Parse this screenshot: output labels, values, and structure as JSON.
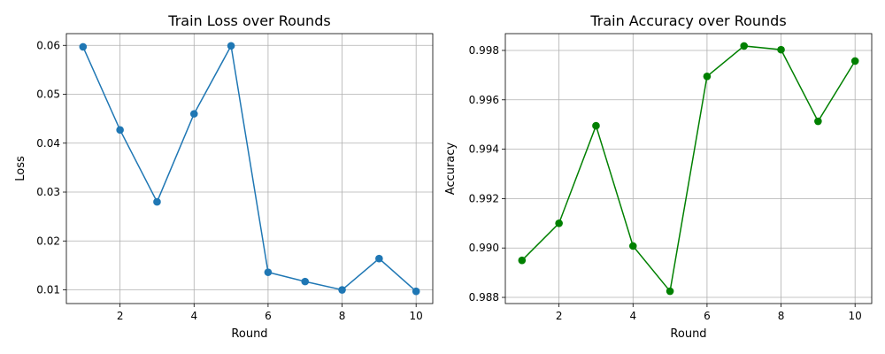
{
  "chart_data": [
    {
      "type": "line",
      "title": "Train Loss over Rounds",
      "xlabel": "Round",
      "ylabel": "Loss",
      "x": [
        1,
        2,
        3,
        4,
        5,
        6,
        7,
        8,
        9,
        10
      ],
      "series": [
        {
          "values": [
            0.0597,
            0.0427,
            0.028,
            0.046,
            0.0599,
            0.0136,
            0.0117,
            0.01,
            0.0164,
            0.0097
          ],
          "color": "#1f77b4",
          "marker": "circle"
        }
      ],
      "xlim": [
        0.55,
        10.45
      ],
      "ylim": [
        0.0072,
        0.0624
      ],
      "xticks": [
        2,
        4,
        6,
        8,
        10
      ],
      "xtick_labels": [
        "2",
        "4",
        "6",
        "8",
        "10"
      ],
      "yticks": [
        0.01,
        0.02,
        0.03,
        0.04,
        0.05,
        0.06
      ],
      "ytick_labels": [
        "0.01",
        "0.02",
        "0.03",
        "0.04",
        "0.05",
        "0.06"
      ],
      "grid": true
    },
    {
      "type": "line",
      "title": "Train Accuracy over Rounds",
      "xlabel": "Round",
      "ylabel": "Accuracy",
      "x": [
        1,
        2,
        3,
        4,
        5,
        6,
        7,
        8,
        9,
        10
      ],
      "series": [
        {
          "values": [
            0.9895,
            0.991,
            0.99495,
            0.99008,
            0.98825,
            0.99695,
            0.99818,
            0.99803,
            0.99513,
            0.99757
          ],
          "color": "#008000",
          "marker": "circle"
        }
      ],
      "xlim": [
        0.55,
        10.45
      ],
      "ylim": [
        0.98775,
        0.99868
      ],
      "xticks": [
        2,
        4,
        6,
        8,
        10
      ],
      "xtick_labels": [
        "2",
        "4",
        "6",
        "8",
        "10"
      ],
      "yticks": [
        0.988,
        0.99,
        0.992,
        0.994,
        0.996,
        0.998
      ],
      "ytick_labels": [
        "0.988",
        "0.990",
        "0.992",
        "0.994",
        "0.996",
        "0.998"
      ],
      "grid": true
    }
  ]
}
